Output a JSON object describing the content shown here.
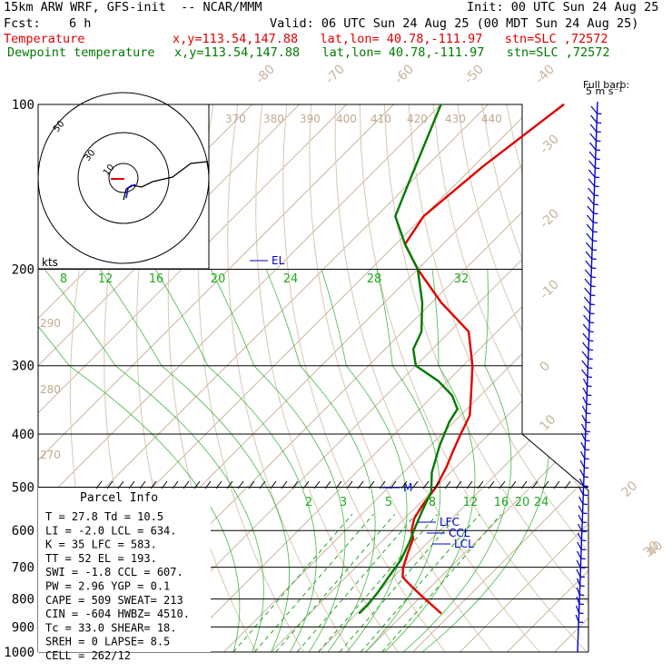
{
  "header": {
    "model": "15km ARW WRF, GFS-init  -- NCAR/MMM",
    "init": "Init: 00 UTC Sun 24 Aug 25",
    "fcst_label": "Fcst:",
    "fcst_value": "6 h",
    "valid": "Valid: 06 UTC Sun 24 Aug 25 (00 MDT Sun 24 Aug 25)",
    "temp_label": "Temperature",
    "temp_info": "x,y=113.54,147.88   lat,lon= 40.78,-111.97   stn=SLC ,72572",
    "dew_label": "Dewpoint temperature",
    "dew_info": "x,y=113.54,147.88   lat,lon= 40.78,-111.97   stn=SLC ,72572"
  },
  "barb_key": {
    "line1": "Full barb:",
    "line2": "5 m s⁻¹"
  },
  "colors": {
    "temperature": "#e00000",
    "dewpoint": "#007a00",
    "barbs": "#0000cc",
    "dry_adiabat": "#d8c8b0",
    "moist_adiabat": "#22aa22",
    "isotherm": "#c8b49c"
  },
  "hodograph": {
    "units": "kts",
    "ring_labels": [
      "50",
      "30",
      "10"
    ]
  },
  "parcel_info": {
    "title": "Parcel Info",
    "rows": [
      "T  =   27.8  Td =  10.5",
      "LI =   -2.0  LCL =  634.",
      "K  =     35  LFC =  583.",
      "TT =     52  EL  =  193.",
      "SWI =  -1.8  CCL =  607.",
      "PW =   2.96  YGP =   0.1",
      "CAPE =  509  SWEAT=  213",
      "CIN =  -604  HWBZ= 4510.",
      "Tc =   33.0  SHEAR=  18.",
      "SREH =    0  LAPSE=  8.5",
      "CELL = 262/12"
    ]
  },
  "chart_data": {
    "type": "line",
    "title": "",
    "xlabel": "",
    "ylabel": "",
    "yscale": "log",
    "pressure_ticks": [
      100,
      200,
      300,
      400,
      500,
      600,
      700,
      800,
      900,
      1000
    ],
    "isotherm_labels": [
      "-80",
      "-70",
      "-60",
      "-50",
      "-40",
      "-30",
      "-20",
      "-10",
      "0",
      "10",
      "20",
      "30",
      "40"
    ],
    "theta_labels": [
      "370",
      "380",
      "390",
      "400",
      "410",
      "420",
      "430",
      "440",
      "290",
      "280",
      "270"
    ],
    "mixing_ratio_labels_upper": [
      "8",
      "12",
      "16",
      "20",
      "24",
      "28",
      "32"
    ],
    "mixing_ratio_labels_lower": [
      "2",
      "3",
      "5",
      "8",
      "12",
      "16",
      "20",
      "24"
    ],
    "levels": {
      "EL": "EL",
      "M": "M",
      "LFC": "LFC",
      "CCL": "CCL",
      "LCL": "LCL"
    },
    "series": [
      {
        "name": "Temperature",
        "color": "#e00000",
        "x": [
          27.8,
          24,
          20,
          16,
          12,
          10,
          8,
          6,
          4,
          2,
          1,
          0,
          -2,
          -4,
          -6,
          -8,
          -12,
          -18,
          -26,
          -38,
          -50,
          -58,
          -60,
          -58,
          -54
        ],
        "y": [
          850,
          820,
          790,
          760,
          730,
          700,
          660,
          620,
          600,
          570,
          540,
          500,
          460,
          430,
          400,
          370,
          340,
          300,
          260,
          230,
          200,
          180,
          160,
          130,
          100
        ]
      },
      {
        "name": "Dewpoint temperature",
        "color": "#007a00",
        "x": [
          10.5,
          10.5,
          10,
          9,
          8,
          6,
          4,
          2,
          0,
          -4,
          -8,
          -11,
          -12,
          -16,
          -22,
          -30,
          -34,
          -36,
          -42,
          -50,
          -58,
          -66,
          -70,
          -80
        ],
        "y": [
          850,
          820,
          780,
          730,
          680,
          630,
          590,
          550,
          510,
          470,
          420,
          380,
          360,
          340,
          320,
          300,
          280,
          260,
          230,
          200,
          180,
          160,
          140,
          100
        ]
      }
    ]
  }
}
